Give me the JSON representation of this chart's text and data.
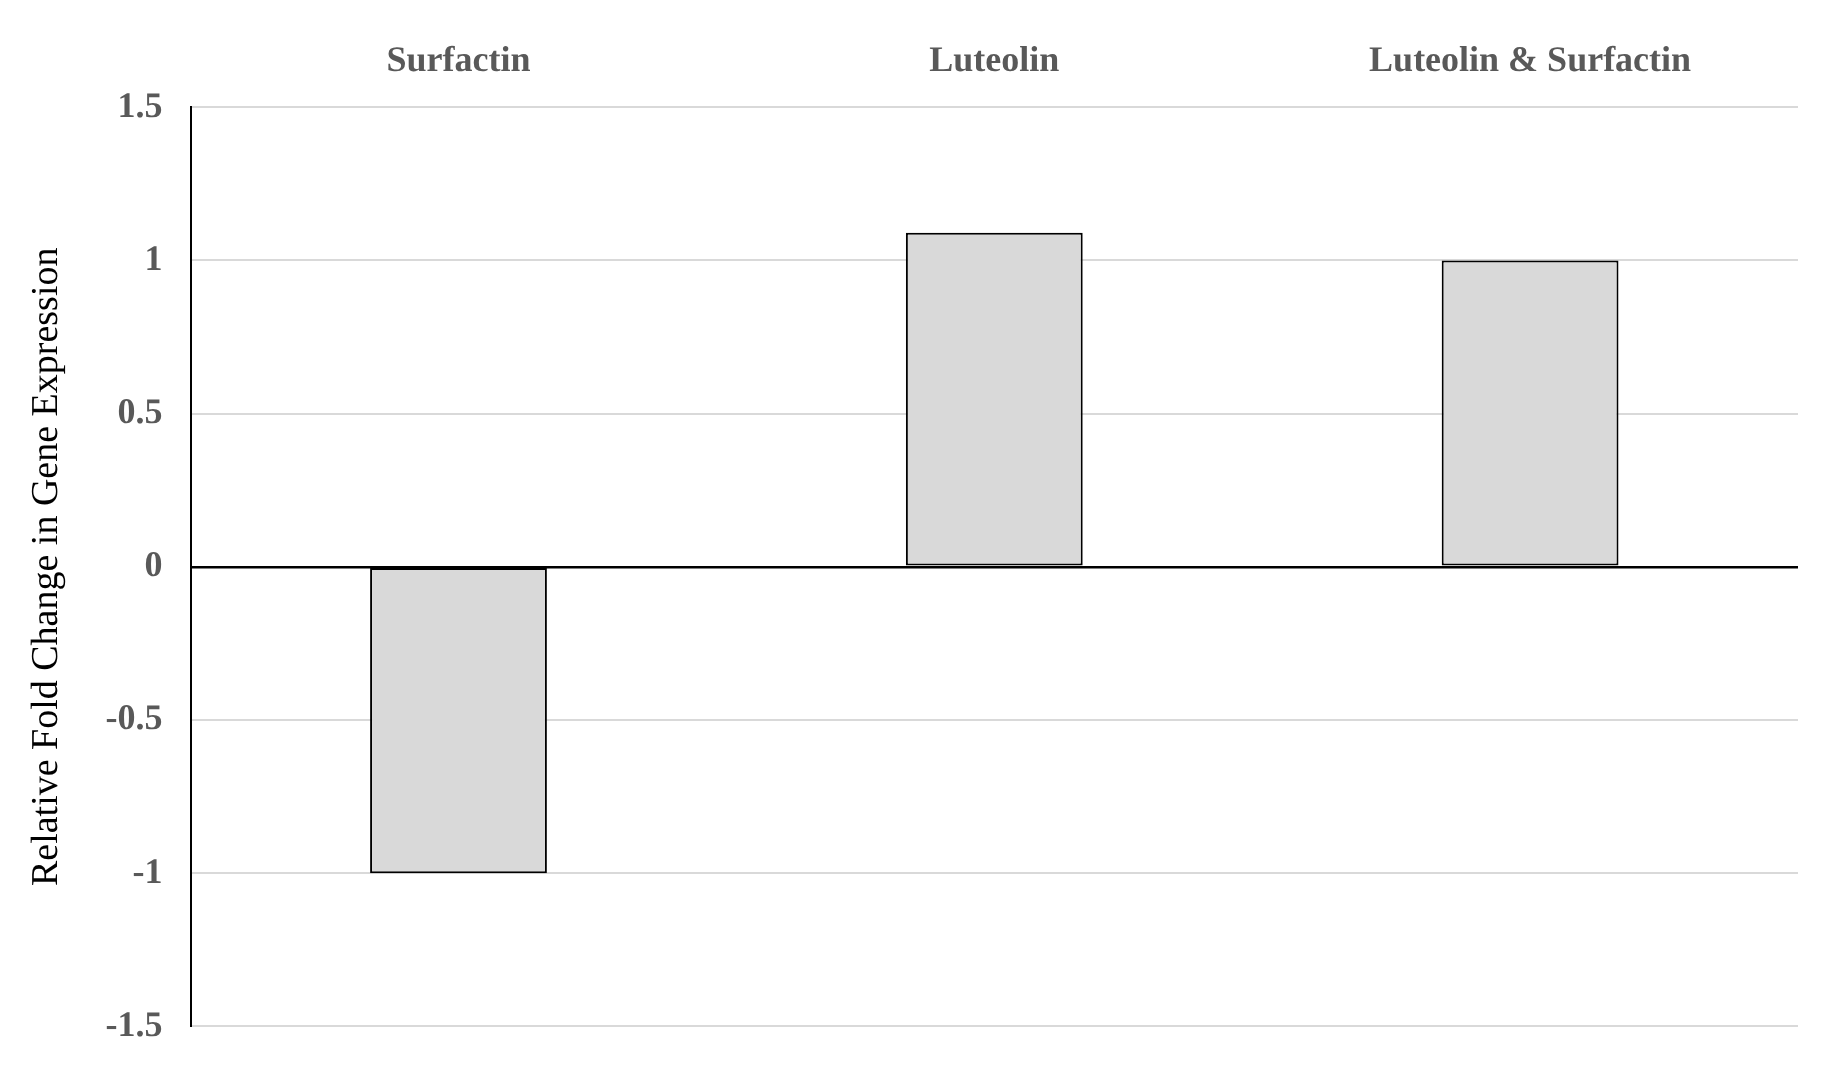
{
  "chart_data": {
    "type": "bar",
    "categories": [
      "Surfactin",
      "Luteolin",
      "Luteolin & Surfactin"
    ],
    "values": [
      -1.0,
      1.09,
      1.0
    ],
    "color": "#d9d9d9",
    "ylabel": "Relative Fold Change in Gene Expression",
    "ylim": [
      -1.5,
      1.5
    ],
    "yticks": [
      -1.5,
      -1,
      -0.5,
      0,
      0.5,
      1,
      1.5
    ],
    "grid": "y",
    "legend": false
  }
}
